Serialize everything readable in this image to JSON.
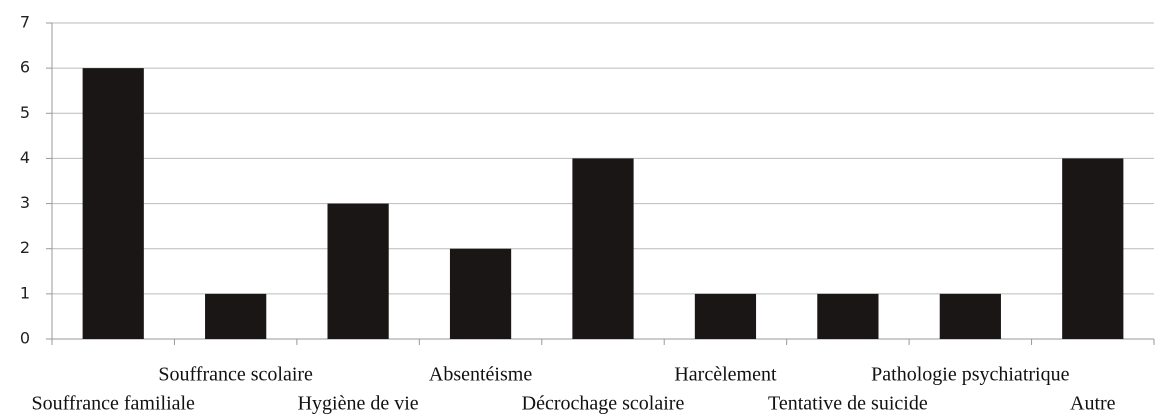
{
  "chart_data": {
    "type": "bar",
    "categories": [
      "Souffrance familiale",
      "Souffrance scolaire",
      "Hygiène de vie",
      "Absentéisme",
      "Décrochage scolaire",
      "Harcèlement",
      "Tentative de suicide",
      "Pathologie psychiatrique",
      "Autre"
    ],
    "values": [
      6,
      1,
      3,
      2,
      4,
      1,
      1,
      1,
      4
    ],
    "color": "#1a1616",
    "ylim": [
      0,
      7
    ],
    "yticks": [
      0,
      1,
      2,
      3,
      4,
      5,
      6,
      7
    ],
    "grid": true
  }
}
